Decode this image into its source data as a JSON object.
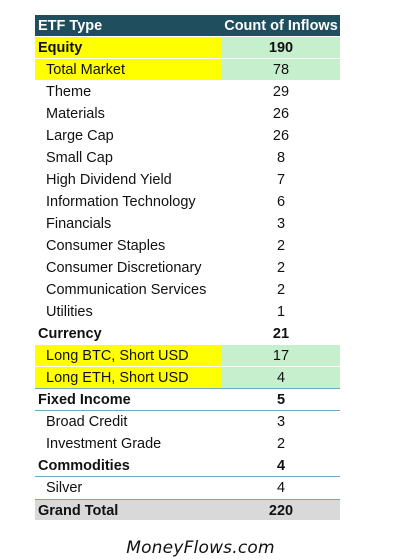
{
  "table": {
    "header": {
      "label": "ETF Type",
      "count": "Count of Inflows"
    },
    "rows": [
      {
        "label": "Equity",
        "count": "190",
        "level": "category",
        "label_color": "#ffff00",
        "count_color": "#c6efce"
      },
      {
        "label": "Total Market",
        "count": "78",
        "level": "sub",
        "label_color": "#ffff00",
        "count_color": "#c6efce"
      },
      {
        "label": "Theme",
        "count": "29",
        "level": "sub"
      },
      {
        "label": "Materials",
        "count": "26",
        "level": "sub"
      },
      {
        "label": "Large Cap",
        "count": "26",
        "level": "sub"
      },
      {
        "label": "Small Cap",
        "count": "8",
        "level": "sub"
      },
      {
        "label": "High Dividend Yield",
        "count": "7",
        "level": "sub"
      },
      {
        "label": "Information Technology",
        "count": "6",
        "level": "sub"
      },
      {
        "label": "Financials",
        "count": "3",
        "level": "sub"
      },
      {
        "label": "Consumer Staples",
        "count": "2",
        "level": "sub"
      },
      {
        "label": "Consumer Discretionary",
        "count": "2",
        "level": "sub"
      },
      {
        "label": "Communication Services",
        "count": "2",
        "level": "sub"
      },
      {
        "label": "Utilities",
        "count": "1",
        "level": "sub"
      },
      {
        "label": "Currency",
        "count": "21",
        "level": "category"
      },
      {
        "label": "Long BTC, Short USD",
        "count": "17",
        "level": "sub",
        "label_color": "#ffff00",
        "count_color": "#c6efce"
      },
      {
        "label": "Long ETH, Short USD",
        "count": "4",
        "level": "sub",
        "label_color": "#ffff00",
        "count_color": "#c6efce",
        "ruled": true
      },
      {
        "label": "Fixed Income",
        "count": "5",
        "level": "category",
        "ruled": true
      },
      {
        "label": "Broad Credit",
        "count": "3",
        "level": "sub"
      },
      {
        "label": "Investment Grade",
        "count": "2",
        "level": "sub"
      },
      {
        "label": "Commodities",
        "count": "4",
        "level": "category",
        "ruled": true
      },
      {
        "label": "Silver",
        "count": "4",
        "level": "sub"
      }
    ],
    "grand_total": {
      "label": "Grand Total",
      "count": "220"
    }
  },
  "footer": {
    "text": "MoneyFlows.com"
  },
  "colors": {
    "header_bg": "#1f4e5f",
    "highlight_yellow": "#ffff00",
    "highlight_green": "#c6efce",
    "total_bg": "#d9d9d9",
    "rule": "#6fa8c4"
  }
}
